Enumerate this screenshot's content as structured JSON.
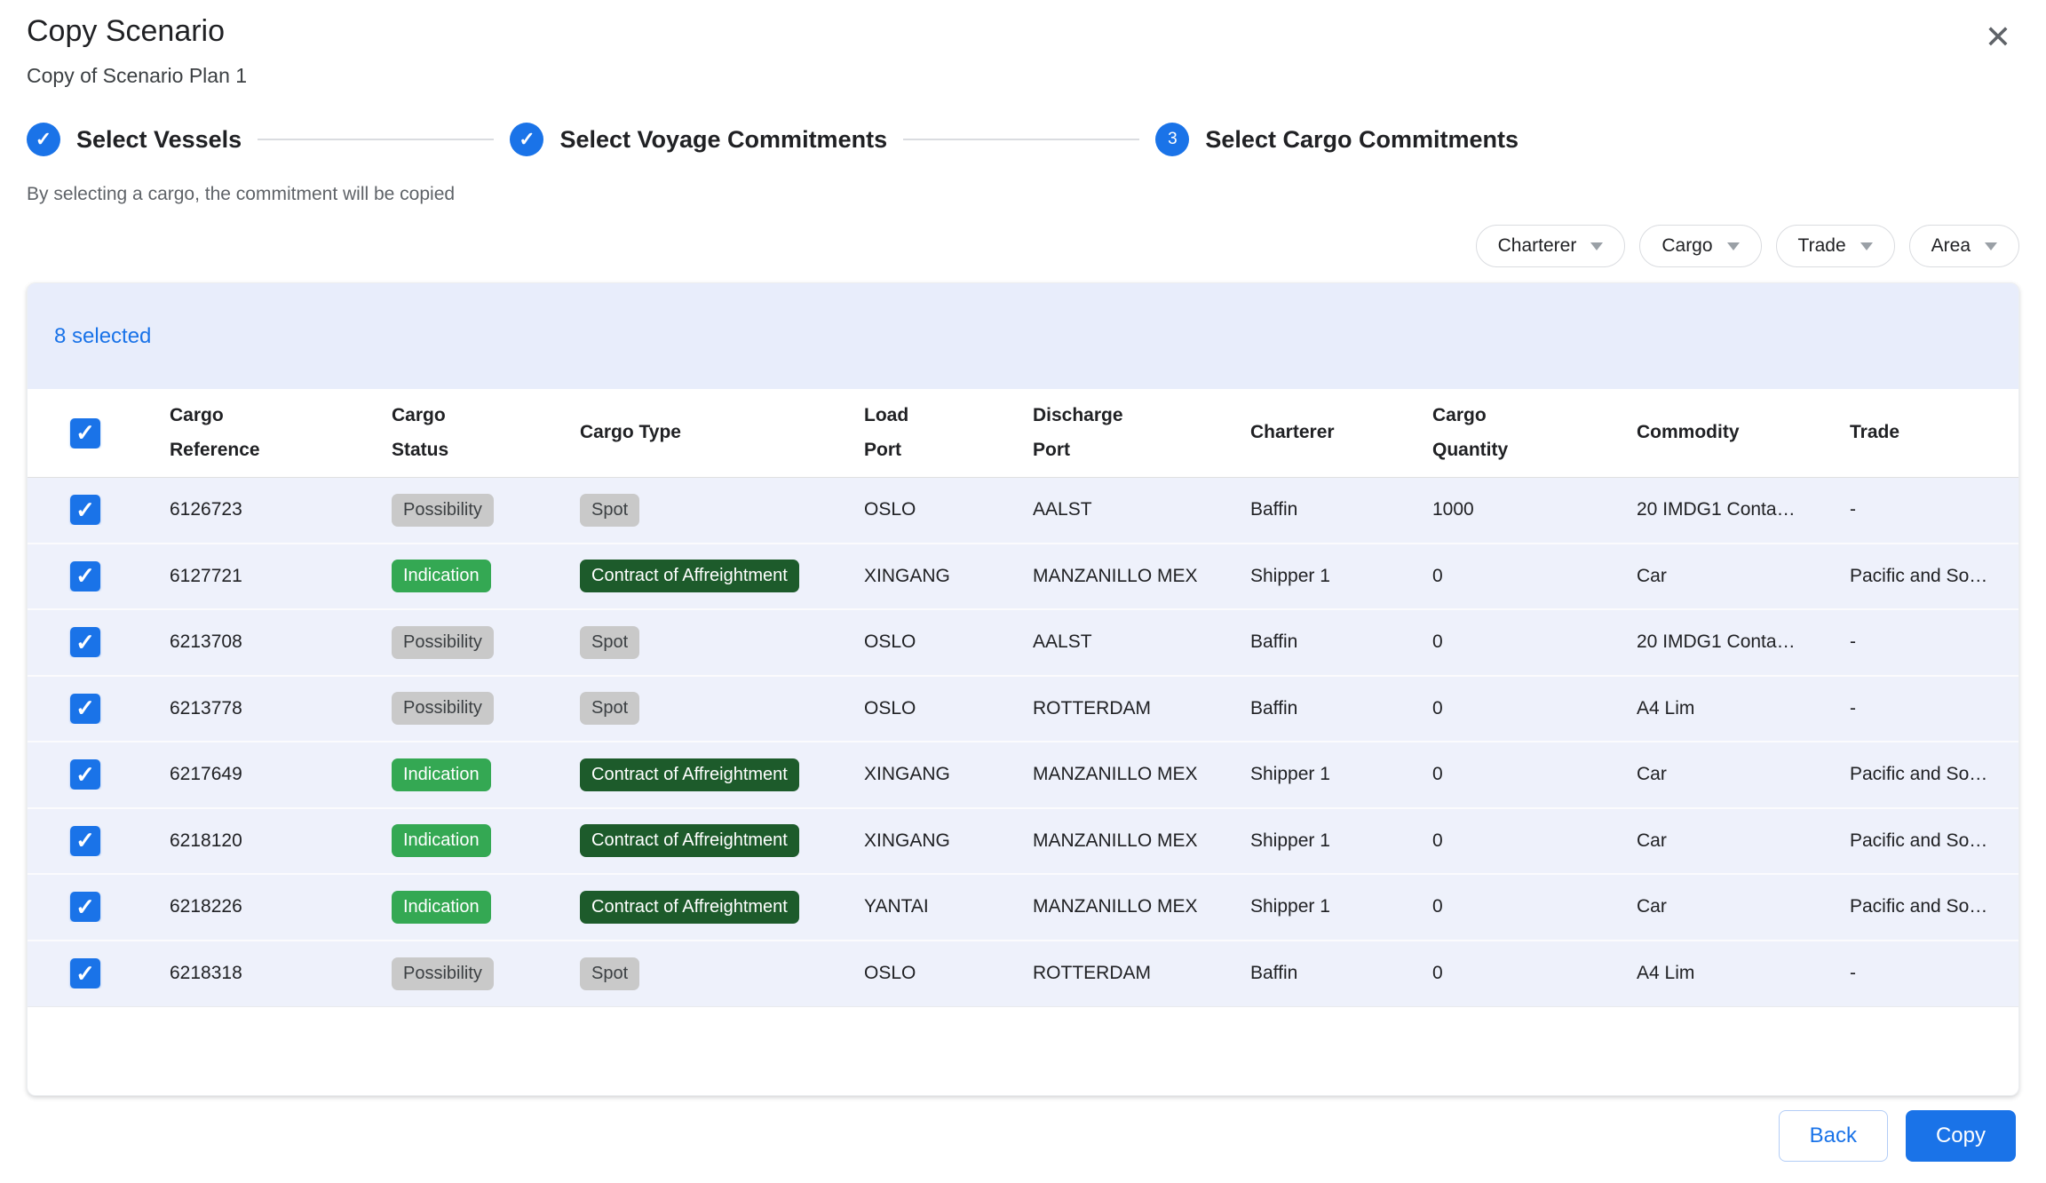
{
  "modal": {
    "title": "Copy Scenario",
    "subtitle": "Copy of Scenario Plan 1"
  },
  "stepper": {
    "helper_text": "By selecting a cargo, the commitment will be copied",
    "steps": [
      {
        "label": "Select Vessels",
        "state": "complete"
      },
      {
        "label": "Select Voyage Commitments",
        "state": "complete"
      },
      {
        "label": "Select Cargo Commitments",
        "state": "active",
        "number": "3"
      }
    ]
  },
  "filters": [
    {
      "label": "Charterer"
    },
    {
      "label": "Cargo"
    },
    {
      "label": "Trade"
    },
    {
      "label": "Area"
    }
  ],
  "table": {
    "selected_count_label": "8 selected",
    "columns": [
      {
        "line1": "Cargo",
        "line2": "Reference"
      },
      {
        "line1": "Cargo",
        "line2": "Status"
      },
      {
        "line1": "Cargo Type",
        "line2": ""
      },
      {
        "line1": "Load",
        "line2": "Port"
      },
      {
        "line1": "Discharge",
        "line2": "Port"
      },
      {
        "line1": "Charterer",
        "line2": ""
      },
      {
        "line1": "Cargo",
        "line2": "Quantity"
      },
      {
        "line1": "Commodity",
        "line2": ""
      },
      {
        "line1": "Trade",
        "line2": ""
      }
    ],
    "rows": [
      {
        "reference": "6126723",
        "status": "Possibility",
        "type": "Spot",
        "load_port": "OSLO",
        "discharge_port": "AALST",
        "charterer": "Baffin",
        "quantity": "1000",
        "commodity": "20 IMDG1 Conta…",
        "trade": "-",
        "checked": true
      },
      {
        "reference": "6127721",
        "status": "Indication",
        "type": "Contract of Affreightment",
        "load_port": "XINGANG",
        "discharge_port": "MANZANILLO MEX",
        "charterer": "Shipper 1",
        "quantity": "0",
        "commodity": "Car",
        "trade": "Pacific and So…",
        "checked": true
      },
      {
        "reference": "6213708",
        "status": "Possibility",
        "type": "Spot",
        "load_port": "OSLO",
        "discharge_port": "AALST",
        "charterer": "Baffin",
        "quantity": "0",
        "commodity": "20 IMDG1 Conta…",
        "trade": "-",
        "checked": true
      },
      {
        "reference": "6213778",
        "status": "Possibility",
        "type": "Spot",
        "load_port": "OSLO",
        "discharge_port": "ROTTERDAM",
        "charterer": "Baffin",
        "quantity": "0",
        "commodity": "A4 Lim",
        "trade": "-",
        "checked": true
      },
      {
        "reference": "6217649",
        "status": "Indication",
        "type": "Contract of Affreightment",
        "load_port": "XINGANG",
        "discharge_port": "MANZANILLO MEX",
        "charterer": "Shipper 1",
        "quantity": "0",
        "commodity": "Car",
        "trade": "Pacific and So…",
        "checked": true
      },
      {
        "reference": "6218120",
        "status": "Indication",
        "type": "Contract of Affreightment",
        "load_port": "XINGANG",
        "discharge_port": "MANZANILLO MEX",
        "charterer": "Shipper 1",
        "quantity": "0",
        "commodity": "Car",
        "trade": "Pacific and So…",
        "checked": true
      },
      {
        "reference": "6218226",
        "status": "Indication",
        "type": "Contract of Affreightment",
        "load_port": "YANTAI",
        "discharge_port": "MANZANILLO MEX",
        "charterer": "Shipper 1",
        "quantity": "0",
        "commodity": "Car",
        "trade": "Pacific and So…",
        "checked": true
      },
      {
        "reference": "6218318",
        "status": "Possibility",
        "type": "Spot",
        "load_port": "OSLO",
        "discharge_port": "ROTTERDAM",
        "charterer": "Baffin",
        "quantity": "0",
        "commodity": "A4 Lim",
        "trade": "-",
        "checked": true
      }
    ]
  },
  "footer": {
    "back_label": "Back",
    "copy_label": "Copy"
  },
  "colors": {
    "accent_blue": "#1a73e8",
    "banner_bg": "#e8edfb",
    "row_bg": "#eef1fb",
    "badge_gray_bg": "#c9c9c9",
    "badge_green_bg": "#34a853",
    "badge_dark_green_bg": "#1d5b2b"
  }
}
